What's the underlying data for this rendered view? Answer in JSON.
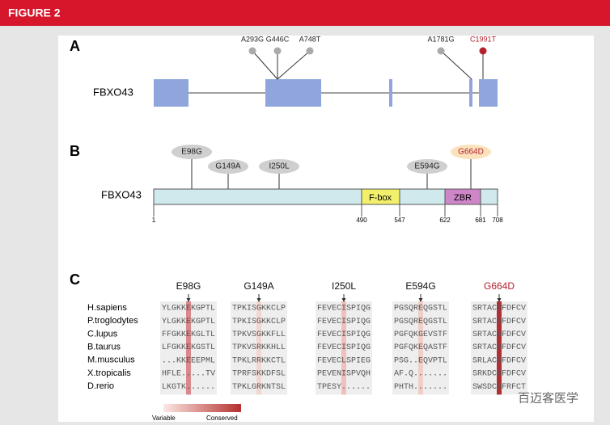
{
  "header": {
    "title": "FIGURE 2"
  },
  "panel_a": {
    "label": "A",
    "gene": "FBXO43",
    "variants": [
      "A293G",
      "G446C",
      "A748T",
      "A1781G",
      "C1991T"
    ]
  },
  "panel_b": {
    "label": "B",
    "gene": "FBXO43",
    "domains": [
      "F-box",
      "ZBR"
    ],
    "positions": [
      1,
      490,
      547,
      622,
      681,
      708
    ],
    "variants": [
      "E98G",
      "G149A",
      "I250L",
      "E594G",
      "G664D"
    ]
  },
  "panel_c": {
    "label": "C",
    "variants": [
      "E98G",
      "G149A",
      "I250L",
      "E594G",
      "G664D"
    ],
    "species": [
      {
        "name": "H.sapiens",
        "sequences": [
          "YLGKKEKGPTL",
          "TPKISGKKCLP",
          "FEVECISPIQG",
          "PGSQREQGSTL",
          "SRTACGFDFCV"
        ]
      },
      {
        "name": "P.troglodytes",
        "sequences": [
          "YLGKKEKGPTL",
          "TPKISGKKCLP",
          "FEVECISPIQG",
          "PGSQREQGSTL",
          "SRTACGFDFCV"
        ]
      },
      {
        "name": "C.lupus",
        "sequences": [
          "FFGKKEKGLTL",
          "TPKVSGKKFLL",
          "FEVECISPIQG",
          "PGFQKGEVSTF",
          "SRTACGFDFCV"
        ]
      },
      {
        "name": "B.taurus",
        "sequences": [
          "LFGKKEKGSTL",
          "TPKVSRKKHLL",
          "FEVECISPIQG",
          "PGFQKEQASTF",
          "SRTACGFDFCV"
        ]
      },
      {
        "name": "M.musculus",
        "sequences": [
          "...KKEEEPML",
          "TPKLRRKKCTL",
          "FEVECLSPIEG",
          "PSG..EQVPTL",
          "SRLACGFDFCV"
        ]
      },
      {
        "name": "X.tropicalis",
        "sequences": [
          "HFLE.....TV",
          "TPRFSKKDFSL",
          "PEVENISPVQH",
          "AF.Q.......",
          "SRKDCGFDFCV"
        ]
      },
      {
        "name": "D.rerio",
        "sequences": [
          "LKGTK......",
          "TPKLGRKNTSL",
          "TPESY......",
          "PHTH.......",
          "SWSDCGFRFCT"
        ]
      }
    ]
  },
  "legend": {
    "low": "Variable",
    "high": "Conserved"
  },
  "watermark": "百迈客医学"
}
